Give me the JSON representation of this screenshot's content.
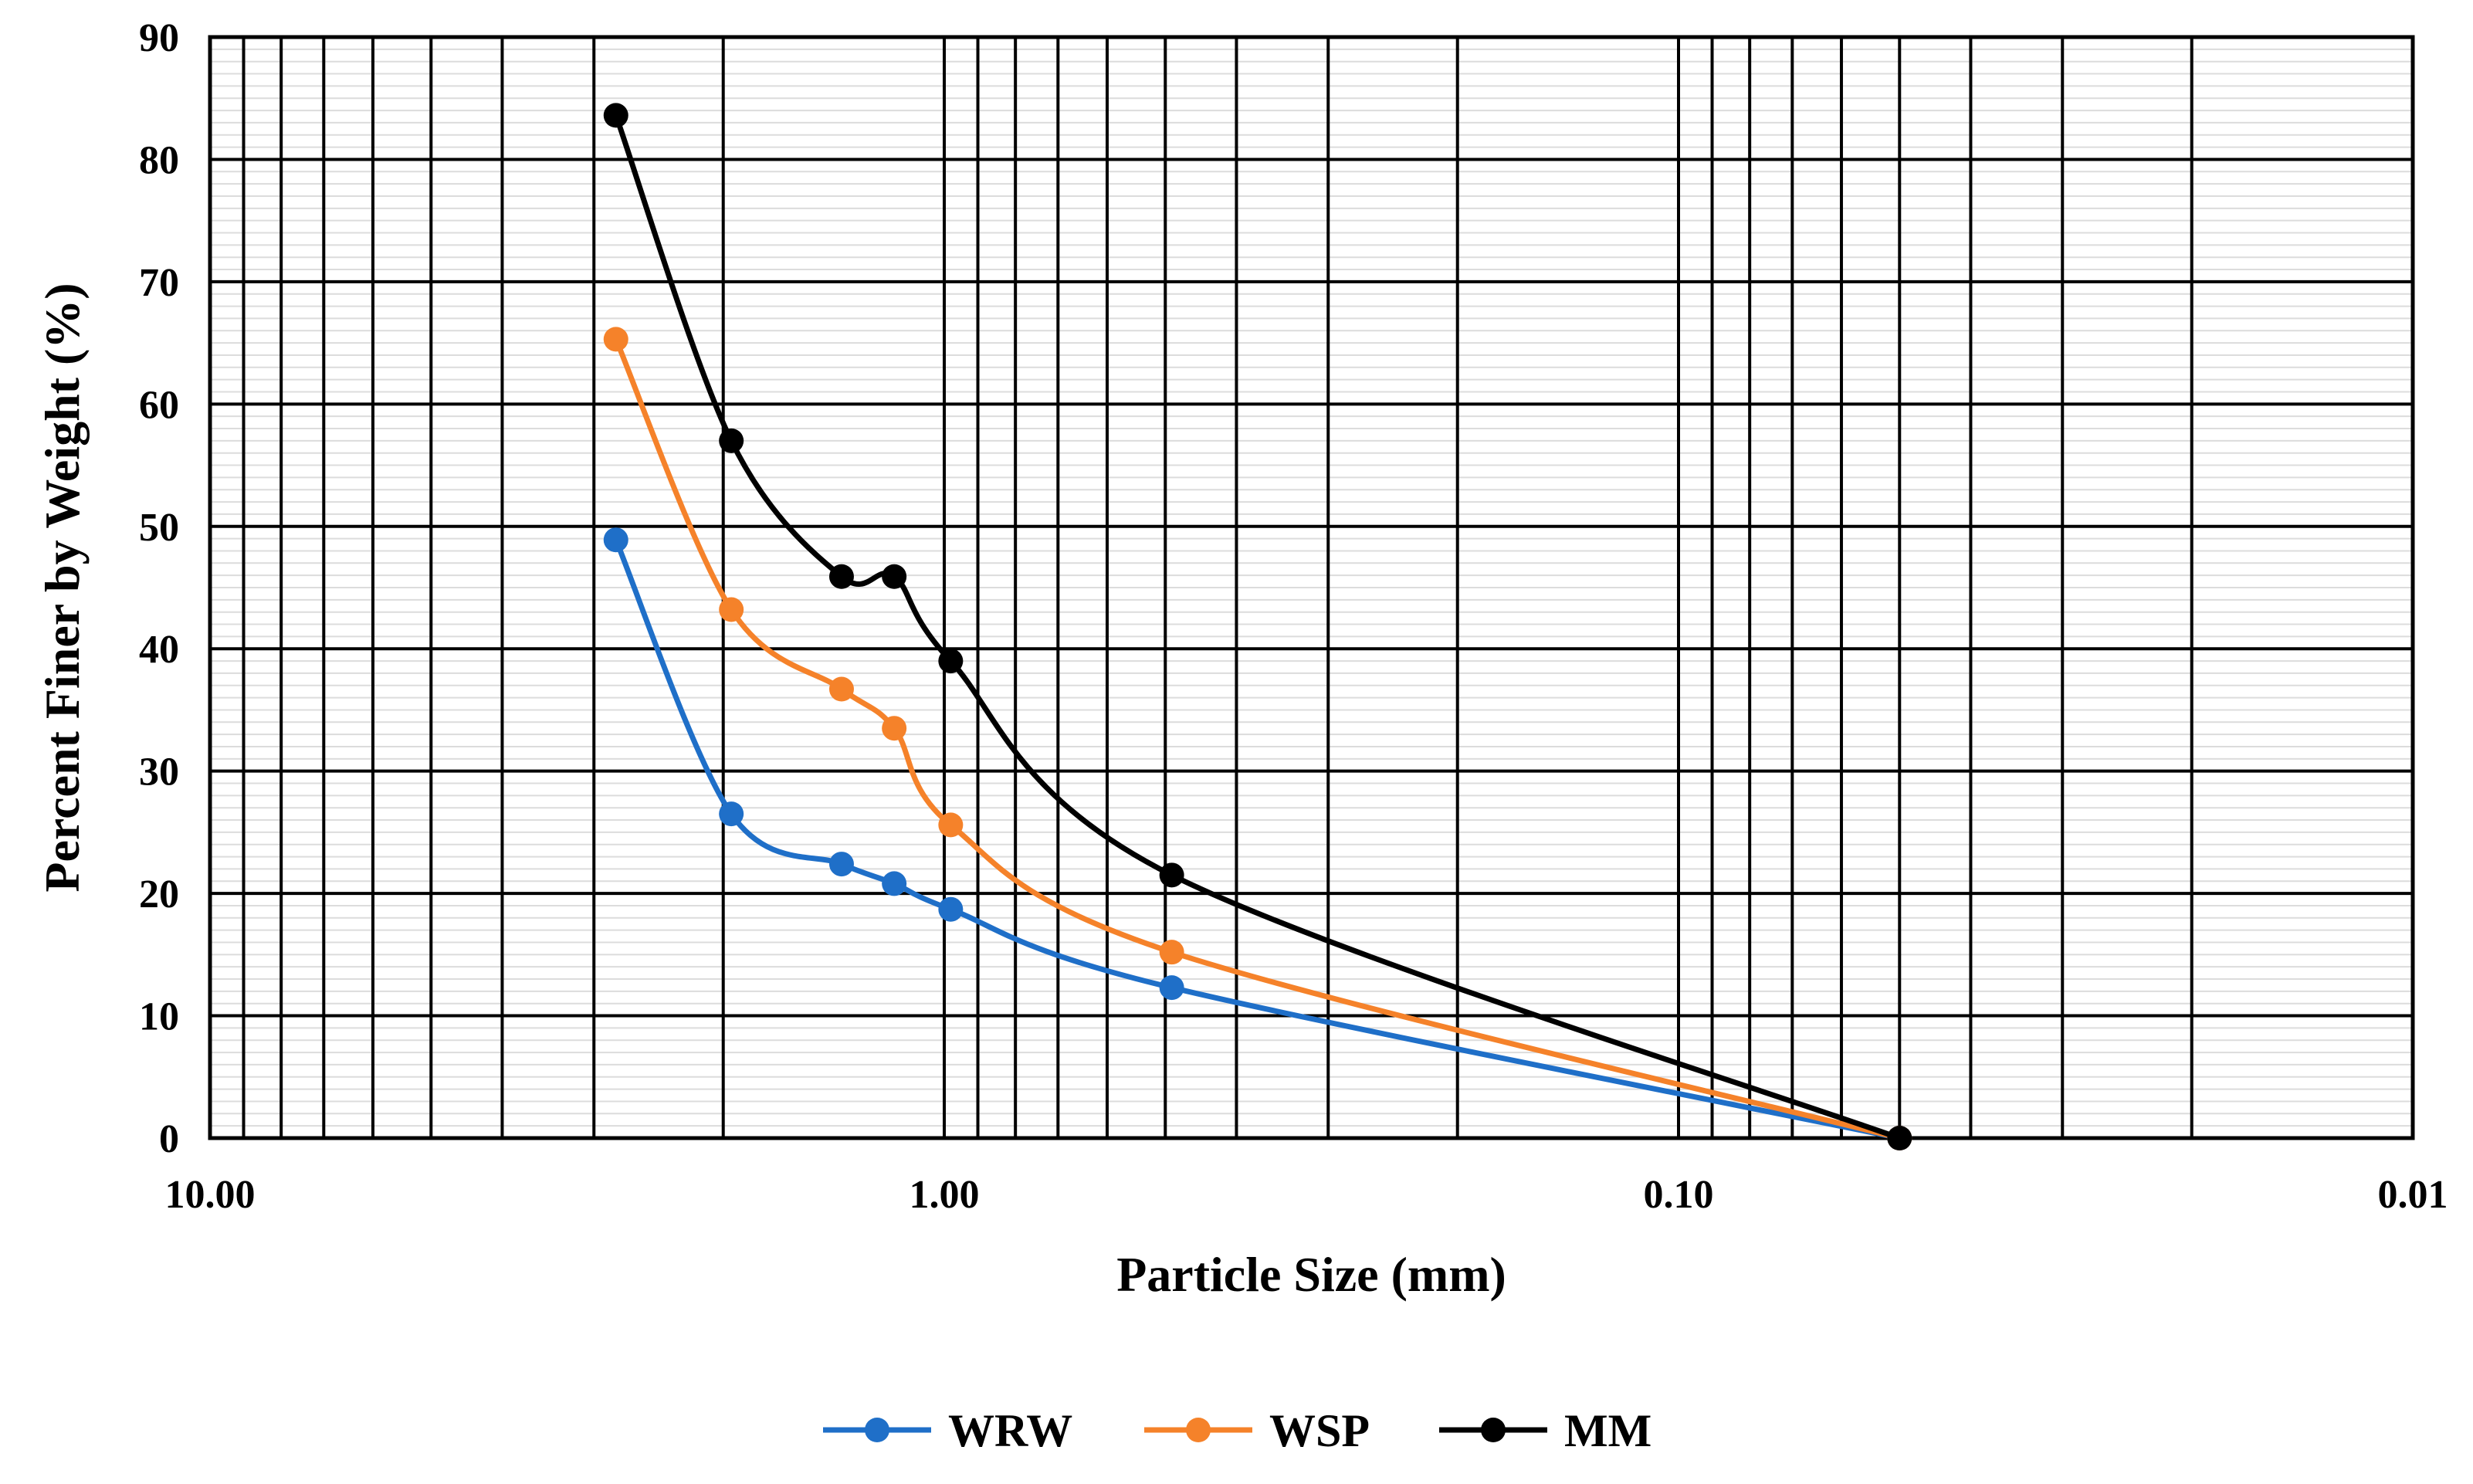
{
  "chart_data": {
    "type": "line",
    "title": "",
    "xlabel": "Particle Size (mm)",
    "ylabel": "Percent Finer by Weight (%)",
    "x_scale": "log",
    "x_reversed": true,
    "xlim": [
      10,
      0.01
    ],
    "ylim": [
      0,
      90
    ],
    "x_tick_values": [
      10,
      1,
      0.1,
      0.01
    ],
    "x_tick_labels": [
      "10.00",
      "1.00",
      "0.10",
      "0.01"
    ],
    "y_ticks": [
      0,
      10,
      20,
      30,
      40,
      50,
      60,
      70,
      80,
      90
    ],
    "y_tick_labels": [
      "0",
      "10",
      "20",
      "30",
      "40",
      "50",
      "60",
      "70",
      "80",
      "90"
    ],
    "grid": true,
    "legend_position": "bottom-center",
    "x": [
      2.8,
      1.95,
      1.38,
      1.17,
      0.98,
      0.49,
      0.05
    ],
    "series": [
      {
        "name": "WRW",
        "color": "#1f6fc8",
        "values": [
          48.9,
          26.5,
          22.4,
          20.8,
          18.7,
          12.3,
          0
        ]
      },
      {
        "name": "WSP",
        "color": "#f5822a",
        "values": [
          65.3,
          43.2,
          36.7,
          33.5,
          25.6,
          15.2,
          0
        ]
      },
      {
        "name": "MM",
        "color": "#000000",
        "values": [
          83.6,
          57.0,
          45.9,
          45.9,
          39.0,
          21.5,
          0
        ]
      }
    ]
  }
}
